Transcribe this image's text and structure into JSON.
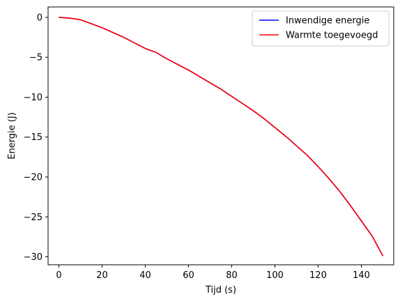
{
  "chart_data": {
    "type": "line",
    "title": "",
    "xlabel": "Tijd (s)",
    "ylabel": "Energie (J)",
    "xlim": [
      -5,
      155
    ],
    "ylim": [
      -31,
      1.3
    ],
    "xticks": [
      0,
      20,
      40,
      60,
      80,
      100,
      120,
      140
    ],
    "yticks": [
      0,
      -5,
      -10,
      -15,
      -20,
      -25,
      -30
    ],
    "xtick_labels": [
      "0",
      "20",
      "40",
      "60",
      "80",
      "100",
      "120",
      "140"
    ],
    "ytick_labels": [
      "0",
      "−5",
      "−10",
      "−15",
      "−20",
      "−25",
      "−30"
    ],
    "grid": false,
    "legend_position": "top-right",
    "series": [
      {
        "name": "Inwendige energie",
        "color": "#0000ff",
        "x": [
          0,
          5,
          10,
          15,
          20,
          25,
          30,
          35,
          40,
          45,
          50,
          55,
          60,
          65,
          70,
          75,
          80,
          85,
          90,
          95,
          100,
          105,
          110,
          115,
          120,
          125,
          130,
          135,
          140,
          145,
          150
        ],
        "y": [
          0,
          -0.1,
          -0.3,
          -0.8,
          -1.3,
          -1.9,
          -2.5,
          -3.2,
          -3.9,
          -4.4,
          -5.2,
          -5.9,
          -6.6,
          -7.4,
          -8.2,
          -9.0,
          -9.9,
          -10.8,
          -11.7,
          -12.7,
          -13.8,
          -14.9,
          -16.1,
          -17.3,
          -18.7,
          -20.2,
          -21.8,
          -23.6,
          -25.5,
          -27.4,
          -29.9
        ]
      },
      {
        "name": "Warmte toegevoegd",
        "color": "#ff0000",
        "x": [
          0,
          5,
          10,
          15,
          20,
          25,
          30,
          35,
          40,
          45,
          50,
          55,
          60,
          65,
          70,
          75,
          80,
          85,
          90,
          95,
          100,
          105,
          110,
          115,
          120,
          125,
          130,
          135,
          140,
          145,
          150
        ],
        "y": [
          0,
          -0.1,
          -0.3,
          -0.8,
          -1.3,
          -1.9,
          -2.5,
          -3.2,
          -3.9,
          -4.4,
          -5.2,
          -5.9,
          -6.6,
          -7.4,
          -8.2,
          -9.0,
          -9.9,
          -10.8,
          -11.7,
          -12.7,
          -13.8,
          -14.9,
          -16.1,
          -17.3,
          -18.7,
          -20.2,
          -21.8,
          -23.6,
          -25.5,
          -27.4,
          -29.9
        ]
      }
    ]
  }
}
